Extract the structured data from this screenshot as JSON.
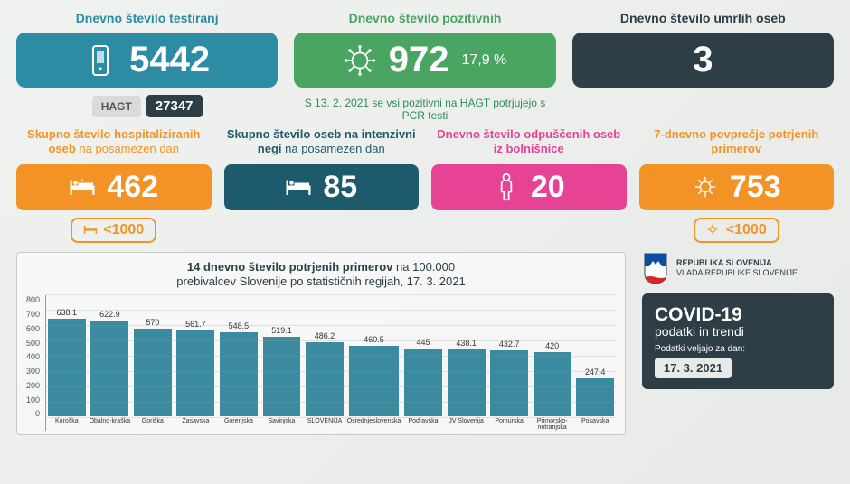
{
  "colors": {
    "teal": "#2b8ca3",
    "green": "#4aa563",
    "dark": "#2d3e47",
    "orange": "#f39325",
    "darkteal": "#1d5a6b",
    "pink": "#e64394",
    "barfill": "#3a8ba0"
  },
  "top": {
    "tests": {
      "title": "Dnevno število testiranj",
      "value": "5442",
      "hagt_label": "HAGT",
      "hagt_value": "27347"
    },
    "positive": {
      "title": "Dnevno število pozitivnih",
      "value": "972",
      "pct": "17,9 %"
    },
    "deaths": {
      "title": "Dnevno število umrlih oseb",
      "value": "3"
    },
    "note": "S 13. 2. 2021 se vsi pozitivni na HAGT potrjujejo s PCR testi"
  },
  "mid": {
    "hosp": {
      "title_b": "Skupno število hospitaliziranih oseb",
      "title_n": " na posamezen dan",
      "value": "462",
      "badge": "<1000"
    },
    "icu": {
      "title_b": "Skupno število oseb na intenzivni negi",
      "title_n": " na posamezen dan",
      "value": "85"
    },
    "discharge": {
      "title_b": "Dnevno število odpuščenih oseb iz bolnišnice",
      "title_n": "",
      "value": "20"
    },
    "avg7": {
      "title_b": "7-dnevno povprečje potrjenih primerov",
      "title_n": "",
      "value": "753",
      "badge": "<1000"
    }
  },
  "chart": {
    "title_b": "14 dnevno število potrjenih primerov",
    "title_n1": " na 100.000",
    "title_n2": "prebivalcev Slovenije po statističnih regijah, 17. 3. 2021",
    "ymax": 800,
    "ytick": 100,
    "categories": [
      "Koroška",
      "Obalno-kraška",
      "Goriška",
      "Zasavska",
      "Gorenjska",
      "Savinjska",
      "SLOVENIJA",
      "Osrednjeslovenska",
      "Podravska",
      "JV Slovenija",
      "Pomurska",
      "Primorsko-notranjska",
      "Posavska"
    ],
    "values": [
      638.1,
      622.9,
      570,
      561.7,
      548.5,
      519.1,
      486.2,
      460.5,
      445,
      438.1,
      432.7,
      420,
      247.4
    ]
  },
  "gov": {
    "line1": "REPUBLIKA SLOVENIJA",
    "line2": "VLADA REPUBLIKE SLOVENIJE"
  },
  "info": {
    "h": "COVID-19",
    "s": "podatki in trendi",
    "d": "Podatki veljajo za dan:",
    "date": "17. 3. 2021"
  }
}
